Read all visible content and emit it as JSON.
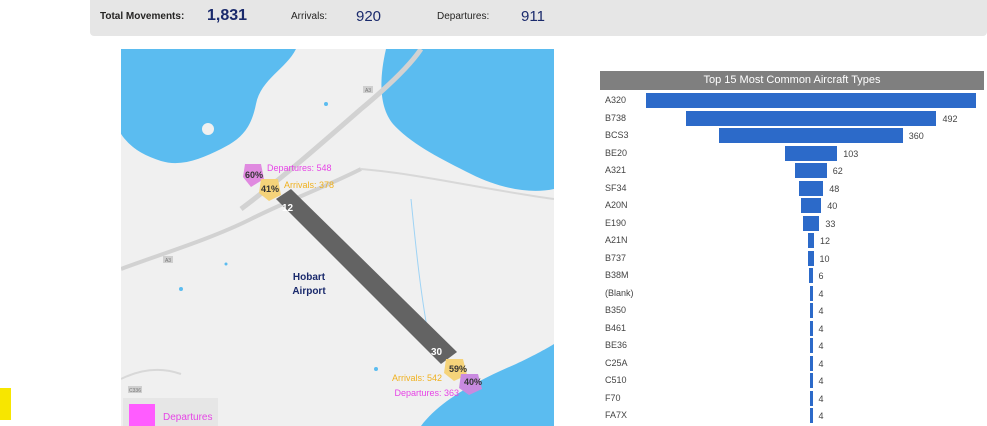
{
  "kpis": {
    "total_label": "Total Movements:",
    "total_value": "1,831",
    "arrivals_label": "Arrivals:",
    "arrivals_value": "920",
    "departures_label": "Departures:",
    "departures_value": "911"
  },
  "map": {
    "airport_name_line1": "Hobart",
    "airport_name_line2": "Airport",
    "runway_end_north": "12",
    "runway_end_south": "30",
    "north_departures_pct": "60%",
    "north_departures_label": "Departures: 548",
    "north_arrivals_pct": "41%",
    "north_arrivals_label": "Arrivals: 378",
    "south_arrivals_pct": "59%",
    "south_arrivals_label": "Arrivals: 542",
    "south_departures_pct": "40%",
    "south_departures_label": "Departures: 363",
    "road_shield_a3": "A3",
    "road_shield_a3_west": "A3",
    "road_shield_c336": "C336",
    "legend_label": "Departures",
    "colors": {
      "water": "#5bbcf0",
      "land": "#f0f0f0",
      "runway": "#636363",
      "departures": "#e645e6",
      "arrivals": "#f0b11f"
    }
  },
  "chart_data": {
    "type": "bar",
    "title": "Top 15 Most Common Aircraft Types",
    "orientation": "horizontal-centered",
    "categories": [
      "A320",
      "B738",
      "BCS3",
      "BE20",
      "A321",
      "SF34",
      "A20N",
      "E190",
      "A21N",
      "B737",
      "B38M",
      "(Blank)",
      "B350",
      "B461",
      "BE36",
      "C25A",
      "C510",
      "F70",
      "FA7X"
    ],
    "values": [
      647,
      492,
      360,
      103,
      62,
      48,
      40,
      33,
      12,
      10,
      6,
      4,
      4,
      4,
      4,
      4,
      4,
      4,
      4
    ],
    "value_labels": [
      "",
      "492",
      "360",
      "103",
      "62",
      "48",
      "40",
      "33",
      "12",
      "10",
      "6",
      "4",
      "4",
      "4",
      "4",
      "4",
      "4",
      "4",
      "4"
    ],
    "bar_color": "#2c6ac9"
  }
}
